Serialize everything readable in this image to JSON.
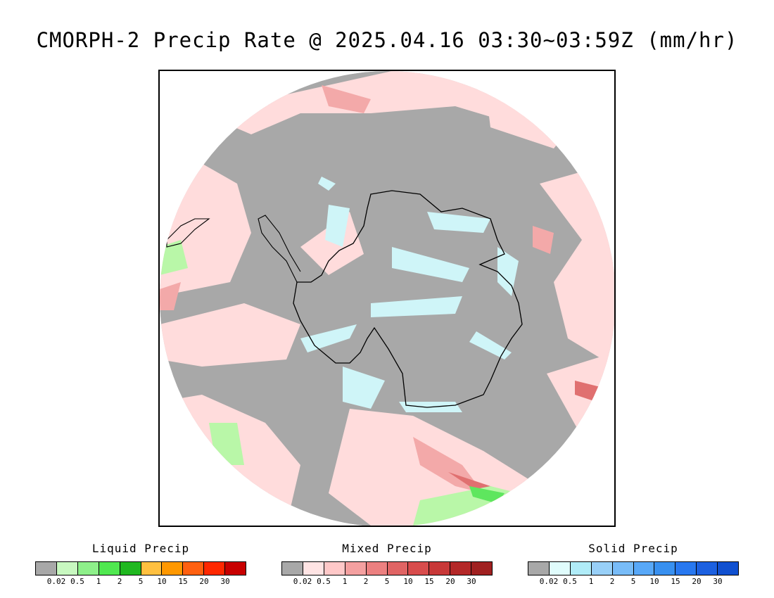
{
  "title": "CMORPH-2 Precip Rate @ 2025.04.16 03:30~03:59Z (mm/hr)",
  "map": {
    "projection": "south-polar-stereographic",
    "colors": {
      "background_gray": "#a8a8a8",
      "light_pink": "#ffdcdc",
      "pink": "#f3a9a9",
      "red": "#e07070",
      "ice_cyan": "#cff5f8",
      "light_green": "#b9f7a8",
      "green": "#5ee65e",
      "coastline": "#000000"
    }
  },
  "legends": [
    {
      "id": "liquid",
      "title": "Liquid Precip",
      "colors": [
        "#a8a8a8",
        "#c8f8c0",
        "#8ef08a",
        "#50e850",
        "#20b820",
        "#ffc040",
        "#ff9800",
        "#ff6010",
        "#ff2800",
        "#c80000"
      ],
      "ticks": [
        "0.02",
        "0.5",
        "1",
        "2",
        "5",
        "10",
        "15",
        "20",
        "30"
      ]
    },
    {
      "id": "mixed",
      "title": "Mixed Precip",
      "colors": [
        "#a8a8a8",
        "#ffe4e4",
        "#ffc8c8",
        "#f4a0a0",
        "#ec8080",
        "#e06464",
        "#d84c4c",
        "#c83838",
        "#b42828",
        "#a02020"
      ],
      "ticks": [
        "0.02",
        "0.5",
        "1",
        "2",
        "5",
        "10",
        "15",
        "20",
        "30"
      ]
    },
    {
      "id": "solid",
      "title": "Solid Precip",
      "colors": [
        "#a8a8a8",
        "#e0fcfc",
        "#b0ecf8",
        "#98d0f8",
        "#78bcf8",
        "#58a8f8",
        "#3890f0",
        "#2878f0",
        "#1c60e0",
        "#1050d0"
      ],
      "ticks": [
        "0.02",
        "0.5",
        "1",
        "2",
        "5",
        "10",
        "15",
        "20",
        "30"
      ]
    }
  ]
}
